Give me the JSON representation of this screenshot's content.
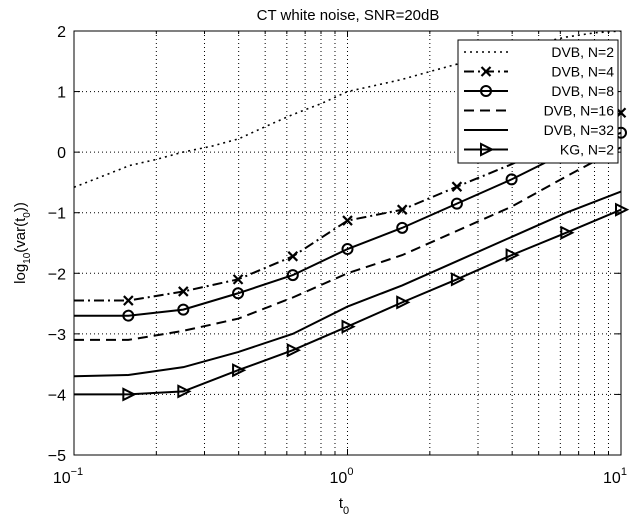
{
  "chart_data": {
    "type": "line",
    "title": "CT white noise, SNR=20dB",
    "xlabel": {
      "main": "t",
      "sub": "0"
    },
    "ylabel": {
      "pre": "log",
      "sub": "10",
      "mid": "(var(t",
      "sub2": "0",
      "post": "))"
    },
    "x_scale": "log",
    "xlim": [
      0.1,
      10
    ],
    "ylim": [
      -5,
      2
    ],
    "x_ticks": [
      {
        "value": 0.1,
        "base": "10",
        "exp": "−1"
      },
      {
        "value": 1,
        "base": "10",
        "exp": "0"
      },
      {
        "value": 10,
        "base": "10",
        "exp": "1"
      }
    ],
    "y_ticks": [
      -5,
      -4,
      -3,
      -2,
      -1,
      0,
      1,
      2
    ],
    "y_tick_labels": [
      "−5",
      "−4",
      "−3",
      "−2",
      "−1",
      "0",
      "1",
      "2"
    ],
    "grid": "dotted",
    "legend_position": "top-right",
    "series": [
      {
        "name": "DVB, N=2",
        "line_style": "dotted",
        "marker": "none",
        "points": [
          [
            0.1,
            -0.58
          ],
          [
            0.13,
            -0.38
          ],
          [
            0.16,
            -0.22
          ],
          [
            0.2,
            -0.12
          ],
          [
            0.25,
            0.0
          ],
          [
            0.32,
            0.1
          ],
          [
            0.4,
            0.22
          ],
          [
            0.5,
            0.42
          ],
          [
            0.63,
            0.62
          ],
          [
            0.8,
            0.8
          ],
          [
            1.0,
            1.0
          ],
          [
            1.26,
            1.1
          ],
          [
            1.58,
            1.2
          ],
          [
            2.0,
            1.33
          ],
          [
            2.5,
            1.45
          ],
          [
            3.2,
            1.6
          ],
          [
            4.0,
            1.7
          ],
          [
            5.0,
            1.8
          ],
          [
            6.3,
            1.9
          ],
          [
            8.0,
            1.97
          ],
          [
            10.0,
            2.0
          ]
        ]
      },
      {
        "name": "DVB, N=4",
        "line_style": "dashdot",
        "marker": "x",
        "points": [
          [
            0.1,
            -2.45
          ],
          [
            0.158,
            -2.45
          ],
          [
            0.251,
            -2.3
          ],
          [
            0.398,
            -2.1
          ],
          [
            0.631,
            -1.72
          ],
          [
            1.0,
            -1.13
          ],
          [
            1.585,
            -0.95
          ],
          [
            2.512,
            -0.57
          ],
          [
            3.981,
            -0.2
          ],
          [
            6.31,
            0.2
          ],
          [
            10.0,
            0.65
          ]
        ],
        "marker_points": [
          [
            0.158,
            -2.45
          ],
          [
            0.251,
            -2.3
          ],
          [
            0.398,
            -2.1
          ],
          [
            0.631,
            -1.72
          ],
          [
            1.0,
            -1.13
          ],
          [
            1.585,
            -0.95
          ],
          [
            2.512,
            -0.57
          ],
          [
            10.0,
            0.65
          ]
        ]
      },
      {
        "name": "DVB, N=8",
        "line_style": "solid",
        "marker": "o",
        "points": [
          [
            0.1,
            -2.7
          ],
          [
            0.158,
            -2.7
          ],
          [
            0.251,
            -2.6
          ],
          [
            0.398,
            -2.33
          ],
          [
            0.631,
            -2.03
          ],
          [
            1.0,
            -1.6
          ],
          [
            1.585,
            -1.25
          ],
          [
            2.512,
            -0.85
          ],
          [
            3.981,
            -0.45
          ],
          [
            6.31,
            0.0
          ],
          [
            10.0,
            0.32
          ]
        ],
        "marker_points": [
          [
            0.158,
            -2.7
          ],
          [
            0.251,
            -2.6
          ],
          [
            0.398,
            -2.33
          ],
          [
            0.631,
            -2.03
          ],
          [
            1.0,
            -1.6
          ],
          [
            1.585,
            -1.25
          ],
          [
            2.512,
            -0.85
          ],
          [
            3.981,
            -0.45
          ],
          [
            10.0,
            0.32
          ]
        ]
      },
      {
        "name": "DVB, N=16",
        "line_style": "dashed",
        "marker": "none",
        "points": [
          [
            0.1,
            -3.1
          ],
          [
            0.158,
            -3.1
          ],
          [
            0.251,
            -2.95
          ],
          [
            0.398,
            -2.75
          ],
          [
            0.631,
            -2.4
          ],
          [
            1.0,
            -2.0
          ],
          [
            1.585,
            -1.7
          ],
          [
            2.512,
            -1.3
          ],
          [
            3.981,
            -0.9
          ],
          [
            6.31,
            -0.4
          ],
          [
            10.0,
            0.08
          ]
        ]
      },
      {
        "name": "DVB, N=32",
        "line_style": "solid",
        "marker": "none",
        "points": [
          [
            0.1,
            -3.7
          ],
          [
            0.158,
            -3.68
          ],
          [
            0.251,
            -3.55
          ],
          [
            0.398,
            -3.3
          ],
          [
            0.631,
            -3.0
          ],
          [
            1.0,
            -2.55
          ],
          [
            1.585,
            -2.2
          ],
          [
            2.512,
            -1.8
          ],
          [
            3.981,
            -1.4
          ],
          [
            6.31,
            -1.0
          ],
          [
            10.0,
            -0.65
          ]
        ]
      },
      {
        "name": "KG, N=2",
        "line_style": "solid",
        "marker": "triangle-right",
        "points": [
          [
            0.1,
            -4.0
          ],
          [
            0.158,
            -4.0
          ],
          [
            0.251,
            -3.95
          ],
          [
            0.398,
            -3.6
          ],
          [
            0.631,
            -3.27
          ],
          [
            1.0,
            -2.88
          ],
          [
            1.585,
            -2.48
          ],
          [
            2.512,
            -2.1
          ],
          [
            3.981,
            -1.7
          ],
          [
            6.31,
            -1.33
          ],
          [
            10.0,
            -0.95
          ]
        ],
        "marker_points": [
          [
            0.158,
            -4.0
          ],
          [
            0.251,
            -3.95
          ],
          [
            0.398,
            -3.6
          ],
          [
            0.631,
            -3.27
          ],
          [
            1.0,
            -2.88
          ],
          [
            1.585,
            -2.48
          ],
          [
            2.512,
            -2.1
          ],
          [
            3.981,
            -1.7
          ],
          [
            6.31,
            -1.33
          ],
          [
            10.0,
            -0.95
          ]
        ]
      }
    ]
  }
}
